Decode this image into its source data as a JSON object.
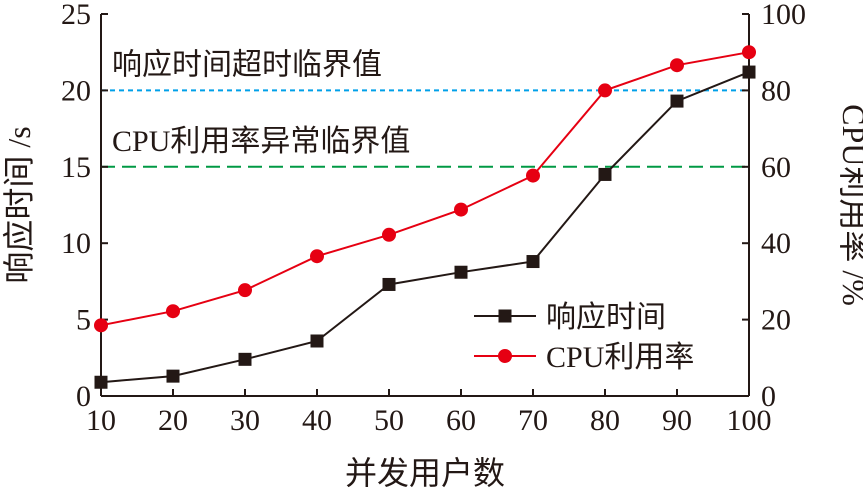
{
  "chart_data": {
    "type": "line",
    "x": [
      10,
      20,
      30,
      40,
      50,
      60,
      70,
      80,
      90,
      100
    ],
    "xlabel": "并发用户数",
    "ylabel_left": "响应时间 /s",
    "ylabel_right": "CPU利用率 /%",
    "ylim_left": [
      0,
      25
    ],
    "ylim_right": [
      0,
      100
    ],
    "yticks_left": [
      "0",
      "5",
      "10",
      "15",
      "20",
      "25"
    ],
    "yticks_right": [
      "0",
      "20",
      "40",
      "60",
      "80",
      "100"
    ],
    "xticks": [
      "10",
      "20",
      "30",
      "40",
      "50",
      "60",
      "70",
      "80",
      "90",
      "100"
    ],
    "series": [
      {
        "name": "响应时间",
        "axis": "left",
        "marker": "square",
        "color": "#231815",
        "values": [
          0.9,
          1.3,
          2.4,
          3.6,
          7.3,
          8.1,
          8.8,
          14.5,
          19.3,
          21.2
        ]
      },
      {
        "name": "CPU利用率",
        "axis": "right",
        "marker": "circle",
        "color": "#e60012",
        "values": [
          18.5,
          22.2,
          27.7,
          36.6,
          42.2,
          48.8,
          57.7,
          80.0,
          86.6,
          90.0
        ]
      }
    ],
    "thresholds": [
      {
        "label": "响应时间超时临界值",
        "value": 20,
        "axis": "left",
        "color": "#00a0e9",
        "style": "dotted"
      },
      {
        "label": "CPU利用率异常临界值",
        "value": 60,
        "axis": "right",
        "color": "#009944",
        "style": "dashed"
      }
    ],
    "legend_position": "bottom-right",
    "grid": false
  }
}
